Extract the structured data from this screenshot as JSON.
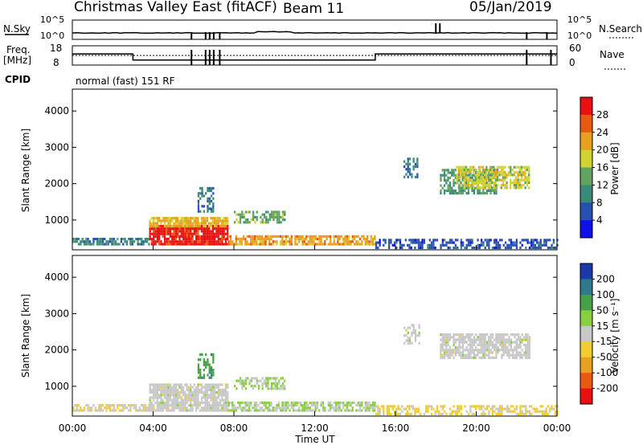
{
  "header": {
    "station": "Christmas Valley East (fitACF)",
    "beam": "Beam 11",
    "date": "05/Jan/2019"
  },
  "status_rows": {
    "nsky_label": "N.Sky",
    "nsky_scale_top": "10^5",
    "nsky_scale_bottom": "10^0",
    "nsearch_label": "N.Search",
    "nsearch_scale_top": "10^5",
    "nsearch_scale_bottom": "10^0",
    "freq_label_1": "Freq.",
    "freq_label_2": "[MHz]",
    "freq_tick_top": "18",
    "freq_tick_bottom": "8",
    "nave_label": "Nave",
    "nave_tick_top": "60",
    "nave_tick_bottom": "0",
    "cpid_label": "CPID",
    "cpid_value": "normal (fast) 151 RF",
    "freq_mhz_segments": [
      {
        "t_start": 0,
        "t_end": 3,
        "freq_mhz": 13.8
      },
      {
        "t_start": 3,
        "t_end": 15,
        "freq_mhz": 10.6
      },
      {
        "t_start": 15,
        "t_end": 24,
        "freq_mhz": 13.8
      }
    ]
  },
  "chart_data": [
    {
      "type": "heatmap",
      "name": "power",
      "ylabel": "Slant Range [km]",
      "xlabel": "",
      "xlim_hours": [
        0,
        24
      ],
      "ylim": [
        180,
        4600
      ],
      "yticks": [
        "1000",
        "2000",
        "3000",
        "4000"
      ],
      "colorbar": {
        "label": "Power [dB]",
        "ticks": [
          "4",
          "8",
          "12",
          "16",
          "20",
          "24",
          "28"
        ],
        "range": [
          0,
          32
        ],
        "colors": [
          "#1010e8",
          "#2850b0",
          "#3a8a7a",
          "#5fa35f",
          "#d2d232",
          "#e8a020",
          "#e85a10",
          "#e81010"
        ]
      },
      "regions": [
        {
          "t_start": 0.0,
          "t_end": 3.8,
          "r_start": 300,
          "r_end": 480,
          "value_db": 10,
          "density": 0.75
        },
        {
          "t_start": 3.8,
          "t_end": 7.7,
          "r_start": 300,
          "r_end": 800,
          "value_db": 30,
          "density": 0.9
        },
        {
          "t_start": 3.8,
          "t_end": 7.7,
          "r_start": 800,
          "r_end": 1060,
          "value_db": 21,
          "density": 0.85
        },
        {
          "t_start": 7.7,
          "t_end": 15.0,
          "r_start": 300,
          "r_end": 560,
          "value_db": 22,
          "density": 0.75
        },
        {
          "t_start": 15.0,
          "t_end": 24.0,
          "r_start": 200,
          "r_end": 420,
          "value_db": 6,
          "density": 0.55
        },
        {
          "t_start": 6.2,
          "t_end": 7.0,
          "r_start": 1200,
          "r_end": 1900,
          "value_db": 9,
          "density": 0.5
        },
        {
          "t_start": 8.0,
          "t_end": 10.5,
          "r_start": 900,
          "r_end": 1200,
          "value_db": 14,
          "density": 0.6
        },
        {
          "t_start": 16.4,
          "t_end": 17.2,
          "r_start": 2150,
          "r_end": 2650,
          "value_db": 9,
          "density": 0.45
        },
        {
          "t_start": 18.2,
          "t_end": 21.0,
          "r_start": 1700,
          "r_end": 2350,
          "value_db": 12,
          "density": 0.65
        },
        {
          "t_start": 19.0,
          "t_end": 22.6,
          "r_start": 1850,
          "r_end": 2450,
          "value_db": 18,
          "density": 0.7
        }
      ]
    },
    {
      "type": "heatmap",
      "name": "velocity",
      "ylabel": "Slant Range [km]",
      "xlabel": "Time UT",
      "xlim_hours": [
        0,
        24
      ],
      "ylim": [
        180,
        4600
      ],
      "yticks": [
        "1000",
        "2000",
        "3000",
        "4000"
      ],
      "xticks": [
        "00:00",
        "04:00",
        "08:00",
        "12:00",
        "16:00",
        "20:00",
        "00:00"
      ],
      "colorbar": {
        "label": "Velocity [m s⁻¹]",
        "ticks": [
          "200",
          "100",
          "50",
          "15",
          "-15",
          "-50",
          "-100",
          "-200"
        ],
        "range": [
          -250,
          250
        ],
        "colors": [
          "#e81010",
          "#e85a10",
          "#e8a020",
          "#f2cc30",
          "#c8c8c8",
          "#88d040",
          "#46a046",
          "#2e7a8a",
          "#1a3aa8"
        ]
      },
      "regions": [
        {
          "t_start": 0.0,
          "t_end": 3.8,
          "r_start": 300,
          "r_end": 480,
          "value_ms": -20,
          "density": 0.7
        },
        {
          "t_start": 3.8,
          "t_end": 7.7,
          "r_start": 300,
          "r_end": 1060,
          "value_ms": 0,
          "density": 0.88
        },
        {
          "t_start": 7.7,
          "t_end": 15.0,
          "r_start": 300,
          "r_end": 560,
          "value_ms": 25,
          "density": 0.75
        },
        {
          "t_start": 15.0,
          "t_end": 24.0,
          "r_start": 200,
          "r_end": 420,
          "value_ms": -40,
          "density": 0.55
        },
        {
          "t_start": 6.2,
          "t_end": 7.0,
          "r_start": 1200,
          "r_end": 1900,
          "value_ms": 120,
          "density": 0.5
        },
        {
          "t_start": 8.0,
          "t_end": 10.5,
          "r_start": 900,
          "r_end": 1200,
          "value_ms": 30,
          "density": 0.6
        },
        {
          "t_start": 16.4,
          "t_end": 17.2,
          "r_start": 2150,
          "r_end": 2650,
          "value_ms": 0,
          "density": 0.45
        },
        {
          "t_start": 18.2,
          "t_end": 22.6,
          "r_start": 1750,
          "r_end": 2450,
          "value_ms": 0,
          "density": 0.75
        }
      ]
    }
  ]
}
